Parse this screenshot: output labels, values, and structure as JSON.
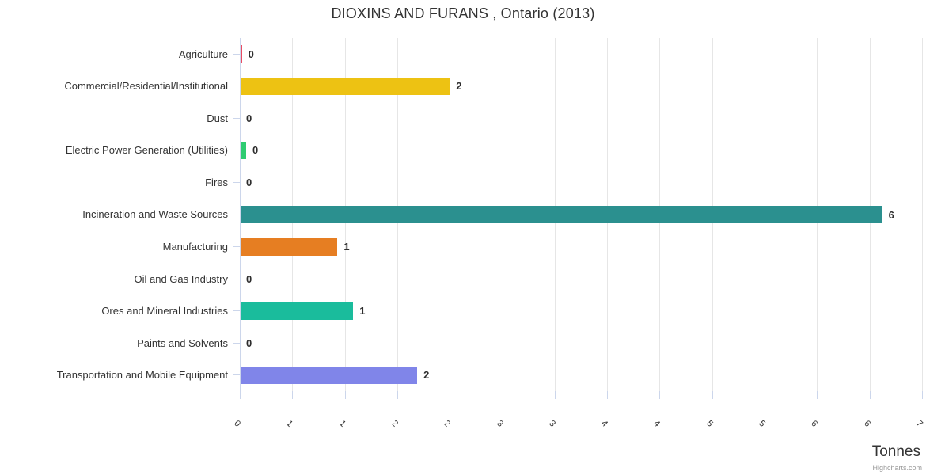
{
  "chart": {
    "title": "DIOXINS AND FURANS , Ontario (2013)",
    "credit": "Highcharts.com"
  },
  "chart_data": {
    "type": "bar",
    "orientation": "horizontal",
    "title": "DIOXINS AND FURANS , Ontario (2013)",
    "categories": [
      "Agriculture",
      "Commercial/Residential/Institutional",
      "Dust",
      "Electric Power Generation (Utilities)",
      "Fires",
      "Incineration and Waste Sources",
      "Manufacturing",
      "Oil and Gas Industry",
      "Ores and Mineral Industries",
      "Paints and Solvents",
      "Transportation and Mobile Equipment"
    ],
    "values": [
      0,
      2,
      0,
      0,
      0,
      6,
      1,
      0,
      1,
      0,
      2
    ],
    "data_labels": [
      "0",
      "2",
      "0",
      "0",
      "0",
      "6",
      "1",
      "0",
      "1",
      "0",
      "2"
    ],
    "bar_lengths_tonnes": [
      0.02,
      2.0,
      0,
      0.06,
      0,
      6.12,
      0.93,
      0,
      1.08,
      0,
      1.69
    ],
    "bar_colors": [
      "#EA4C62",
      "#EDC213",
      null,
      "#2ECC71",
      null,
      "#2B908F",
      "#E67E22",
      null,
      "#1ABC9C",
      null,
      "#8085E9"
    ],
    "xlabel": "Tonnes",
    "ylabel": "",
    "xlim": [
      0,
      6.5
    ],
    "tick_interval": 0.5,
    "x_tick_labels": [
      "0",
      "1",
      "1",
      "2",
      "2",
      "3",
      "3",
      "4",
      "4",
      "5",
      "5",
      "6",
      "6",
      "7"
    ],
    "x_tick_label_rotation_deg": 45,
    "grid": true,
    "legend": false,
    "axis_line_color": "#CCD6EB",
    "grid_line_color": "#E6E6E6"
  }
}
